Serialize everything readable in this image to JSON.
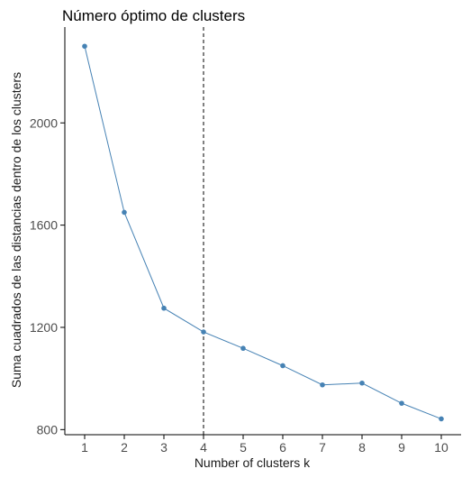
{
  "chart_data": {
    "type": "line",
    "title": "Número óptimo de clusters",
    "xlabel": "Number of clusters k",
    "ylabel": "Suma cuadrados de las distancias dentro de los clusters",
    "x": [
      1,
      2,
      3,
      4,
      5,
      6,
      7,
      8,
      9,
      10
    ],
    "x_tick_labels": [
      "1",
      "2",
      "3",
      "4",
      "5",
      "6",
      "7",
      "8",
      "9",
      "10"
    ],
    "y_ticks": [
      800,
      1200,
      1600,
      2000
    ],
    "y_tick_labels": [
      "800",
      "1200",
      "1600",
      "2000"
    ],
    "xlim": [
      0.5,
      10.5
    ],
    "ylim": [
      780,
      2375
    ],
    "series": [
      {
        "values": [
          2300,
          1650,
          1275,
          1182,
          1118,
          1050,
          975,
          982,
          903,
          842
        ]
      }
    ],
    "vline": {
      "x": 4,
      "style": "dashed"
    },
    "grid": false,
    "colors": {
      "line": "#4682b4",
      "point": "#4682b4",
      "vline": "#000000",
      "axis": "#000000",
      "text": "#1a1a1a"
    }
  }
}
